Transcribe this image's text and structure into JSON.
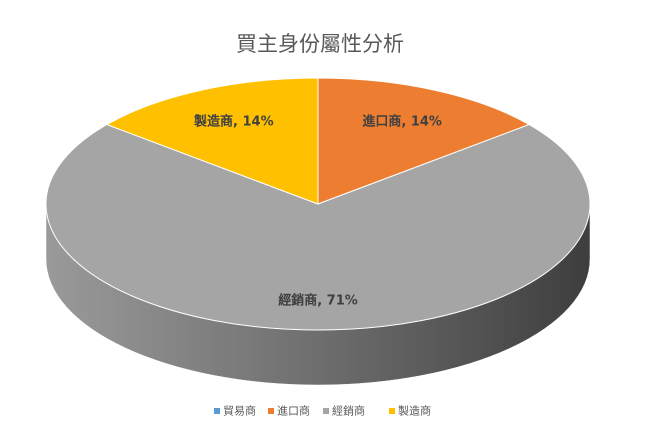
{
  "chart_data": {
    "type": "pie",
    "title": "買主身份屬性分析",
    "categories": [
      "貿易商",
      "進口商",
      "經銷商",
      "製造商"
    ],
    "values": [
      0,
      14,
      71,
      14
    ],
    "value_labels": [
      null,
      "進口商, 14%",
      "經銷商, 71%",
      "製造商, 14%"
    ],
    "colors": [
      "#5b9bd5",
      "#ed7d31",
      "#a5a5a5",
      "#ffc000"
    ],
    "legend": "bottom"
  }
}
